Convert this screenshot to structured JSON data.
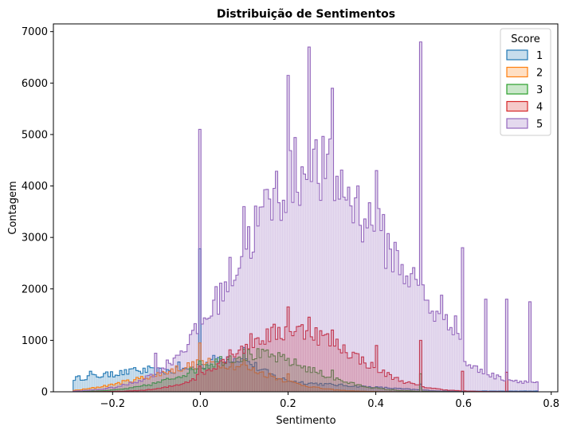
{
  "chart_data": {
    "type": "histogram",
    "title": "Distribuição de Sentimentos",
    "xlabel": "Sentimento",
    "ylabel": "Contagem",
    "xlim": [
      -0.335,
      0.815
    ],
    "ylim": [
      0,
      7150
    ],
    "xticks": [
      -0.2,
      0.0,
      0.2,
      0.4,
      0.6,
      0.8
    ],
    "xtick_labels": [
      "−0.2",
      "0.0",
      "0.2",
      "0.4",
      "0.6",
      "0.8"
    ],
    "yticks": [
      0,
      1000,
      2000,
      3000,
      4000,
      5000,
      6000,
      7000
    ],
    "ytick_labels": [
      "0",
      "1000",
      "2000",
      "3000",
      "4000",
      "5000",
      "6000",
      "7000"
    ],
    "grid": false,
    "legend": {
      "title": "Score",
      "placement": "top-right"
    },
    "element": "step",
    "bin_range": [
      -0.29,
      0.77
    ],
    "bin_count": 200,
    "series": [
      {
        "name": "1",
        "color": "#1f77b4",
        "peaks": [
          {
            "x": -0.25,
            "y": 400
          },
          {
            "x": -0.2,
            "y": 390
          },
          {
            "x": -0.15,
            "y": 470
          },
          {
            "x": -0.12,
            "y": 500
          },
          {
            "x": -0.05,
            "y": 580
          },
          {
            "x": 0.0,
            "y": 2780
          },
          {
            "x": 0.1,
            "y": 860
          },
          {
            "x": 0.5,
            "y": 150
          }
        ]
      },
      {
        "name": "2",
        "color": "#ff7f0e",
        "peaks": [
          {
            "x": -0.2,
            "y": 150
          },
          {
            "x": -0.1,
            "y": 300
          },
          {
            "x": 0.0,
            "y": 950
          },
          {
            "x": 0.1,
            "y": 620
          },
          {
            "x": 0.2,
            "y": 350
          }
        ]
      },
      {
        "name": "3",
        "color": "#2ca02c",
        "peaks": [
          {
            "x": 0.0,
            "y": 600
          },
          {
            "x": 0.1,
            "y": 830
          },
          {
            "x": 0.2,
            "y": 650
          },
          {
            "x": 0.3,
            "y": 420
          },
          {
            "x": 0.5,
            "y": 350
          }
        ]
      },
      {
        "name": "4",
        "color": "#d62728",
        "peaks": [
          {
            "x": 0.0,
            "y": 500
          },
          {
            "x": 0.1,
            "y": 750
          },
          {
            "x": 0.2,
            "y": 1650
          },
          {
            "x": 0.25,
            "y": 1450
          },
          {
            "x": 0.3,
            "y": 1200
          },
          {
            "x": 0.4,
            "y": 900
          },
          {
            "x": 0.5,
            "y": 1000
          },
          {
            "x": 0.6,
            "y": 400
          },
          {
            "x": 0.7,
            "y": 380
          }
        ]
      },
      {
        "name": "5",
        "color": "#9467bd",
        "peaks": [
          {
            "x": -0.1,
            "y": 750
          },
          {
            "x": 0.0,
            "y": 5100
          },
          {
            "x": 0.1,
            "y": 3600
          },
          {
            "x": 0.2,
            "y": 6150
          },
          {
            "x": 0.25,
            "y": 6700
          },
          {
            "x": 0.3,
            "y": 5900
          },
          {
            "x": 0.4,
            "y": 4300
          },
          {
            "x": 0.5,
            "y": 6800
          },
          {
            "x": 0.6,
            "y": 2800
          },
          {
            "x": 0.65,
            "y": 1800
          },
          {
            "x": 0.7,
            "y": 1800
          },
          {
            "x": 0.75,
            "y": 1750
          }
        ]
      }
    ]
  }
}
